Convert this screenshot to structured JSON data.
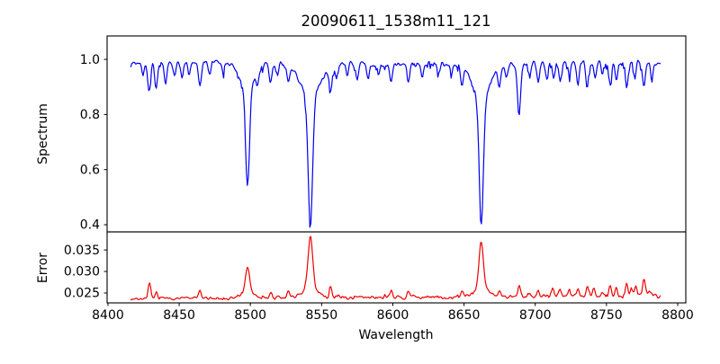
{
  "figure": {
    "background": "#ffffff",
    "spine_color": "#000000"
  },
  "chart_data": {
    "type": "line",
    "title": "20090611_1538m11_121",
    "xlabel": "Wavelength",
    "grid": false,
    "legend": "none",
    "seed": 7,
    "n_points": 560,
    "x_range_data": [
      8416,
      8788
    ],
    "xlim": [
      8399.4,
      8805.7
    ],
    "x_ticks": [
      {
        "value": 8400,
        "label": "8400"
      },
      {
        "value": 8450,
        "label": "8450"
      },
      {
        "value": 8500,
        "label": "8500"
      },
      {
        "value": 8550,
        "label": "8550"
      },
      {
        "value": 8600,
        "label": "8600"
      },
      {
        "value": 8650,
        "label": "8650"
      },
      {
        "value": 8700,
        "label": "8700"
      },
      {
        "value": 8750,
        "label": "8750"
      },
      {
        "value": 8800,
        "label": "8800"
      }
    ],
    "panels": [
      {
        "name": "spectrum",
        "ylabel": "Spectrum",
        "color": "#0000ee",
        "ylim": [
          0.374,
          1.085
        ],
        "y_ticks": [
          {
            "value": 1.0,
            "label": "1.0"
          },
          {
            "value": 0.8,
            "label": "0.8"
          },
          {
            "value": 0.6,
            "label": "0.6"
          },
          {
            "value": 0.4,
            "label": "0.4"
          }
        ],
        "continuum": 0.985,
        "undulation_amp": 0.004,
        "noise_amp": 0.013,
        "dip_prob": 0.13,
        "dip_amp": 0.024,
        "clamp_max": 1.032,
        "absorption_lines": [
          {
            "c": 8498.0,
            "d": 0.36,
            "s": 1.3,
            "dw": 0.095,
            "sw": 5.5
          },
          {
            "c": 8542.1,
            "d": 0.47,
            "s": 1.5,
            "dw": 0.125,
            "sw": 7.0
          },
          {
            "c": 8662.1,
            "d": 0.46,
            "s": 1.45,
            "dw": 0.12,
            "sw": 6.5
          },
          {
            "c": 8424.5,
            "d": 0.045,
            "s": 0.9
          },
          {
            "c": 8429.0,
            "d": 0.105,
            "s": 1.0
          },
          {
            "c": 8433.8,
            "d": 0.1,
            "s": 0.9
          },
          {
            "c": 8440.5,
            "d": 0.075,
            "s": 0.9
          },
          {
            "c": 8446.8,
            "d": 0.05,
            "s": 0.8
          },
          {
            "c": 8452.0,
            "d": 0.055,
            "s": 0.8
          },
          {
            "c": 8457.0,
            "d": 0.05,
            "s": 0.8
          },
          {
            "c": 8464.5,
            "d": 0.09,
            "s": 1.0
          },
          {
            "c": 8471.5,
            "d": 0.04,
            "s": 0.8
          },
          {
            "c": 8481.0,
            "d": 0.04,
            "s": 0.8
          },
          {
            "c": 8505.0,
            "d": 0.045,
            "s": 0.8
          },
          {
            "c": 8514.2,
            "d": 0.075,
            "s": 0.9
          },
          {
            "c": 8519.0,
            "d": 0.05,
            "s": 0.8
          },
          {
            "c": 8526.6,
            "d": 0.06,
            "s": 0.9
          },
          {
            "c": 8556.4,
            "d": 0.09,
            "s": 1.0
          },
          {
            "c": 8560.5,
            "d": 0.045,
            "s": 0.8
          },
          {
            "c": 8568.0,
            "d": 0.04,
            "s": 0.8
          },
          {
            "c": 8575.0,
            "d": 0.05,
            "s": 0.8
          },
          {
            "c": 8582.6,
            "d": 0.055,
            "s": 0.9
          },
          {
            "c": 8590.0,
            "d": 0.04,
            "s": 0.8
          },
          {
            "c": 8598.8,
            "d": 0.07,
            "s": 0.9
          },
          {
            "c": 8611.0,
            "d": 0.06,
            "s": 0.9
          },
          {
            "c": 8620.5,
            "d": 0.05,
            "s": 0.8
          },
          {
            "c": 8632.0,
            "d": 0.04,
            "s": 0.8
          },
          {
            "c": 8641.0,
            "d": 0.04,
            "s": 0.8
          },
          {
            "c": 8648.5,
            "d": 0.07,
            "s": 0.9
          },
          {
            "c": 8674.7,
            "d": 0.06,
            "s": 0.9
          },
          {
            "c": 8680.0,
            "d": 0.045,
            "s": 0.8
          },
          {
            "c": 8688.6,
            "d": 0.19,
            "s": 1.1
          },
          {
            "c": 8696.0,
            "d": 0.055,
            "s": 0.8
          },
          {
            "c": 8702.2,
            "d": 0.07,
            "s": 0.9
          },
          {
            "c": 8708.0,
            "d": 0.045,
            "s": 0.8
          },
          {
            "c": 8713.0,
            "d": 0.06,
            "s": 0.8
          },
          {
            "c": 8717.5,
            "d": 0.07,
            "s": 0.9
          },
          {
            "c": 8724.0,
            "d": 0.05,
            "s": 0.8
          },
          {
            "c": 8730.0,
            "d": 0.08,
            "s": 0.9
          },
          {
            "c": 8736.5,
            "d": 0.09,
            "s": 0.9
          },
          {
            "c": 8742.0,
            "d": 0.06,
            "s": 0.8
          },
          {
            "c": 8747.0,
            "d": 0.05,
            "s": 0.8
          },
          {
            "c": 8752.5,
            "d": 0.08,
            "s": 0.9
          },
          {
            "c": 8757.0,
            "d": 0.06,
            "s": 0.8
          },
          {
            "c": 8764.2,
            "d": 0.09,
            "s": 0.9
          },
          {
            "c": 8770.0,
            "d": 0.055,
            "s": 0.8
          },
          {
            "c": 8776.4,
            "d": 0.095,
            "s": 0.9
          },
          {
            "c": 8782.0,
            "d": 0.05,
            "s": 0.8
          }
        ]
      },
      {
        "name": "error",
        "ylabel": "Error",
        "color": "#ee0000",
        "ylim": [
          0.0227,
          0.0392
        ],
        "y_ticks": [
          {
            "value": 0.035,
            "label": "0.035"
          },
          {
            "value": 0.03,
            "label": "0.030"
          },
          {
            "value": 0.025,
            "label": "0.025"
          }
        ],
        "baseline_start": 0.0237,
        "baseline_end": 0.0243,
        "noise_amp": 0.00045,
        "noise_right_growth": 0.6,
        "dip_couple": 0.0004,
        "peaks": [
          {
            "c": 8498.0,
            "h": 0.0062,
            "s": 1.4,
            "hw": 0.0012,
            "sw": 4.0
          },
          {
            "c": 8542.1,
            "h": 0.0118,
            "s": 1.6,
            "hw": 0.0025,
            "sw": 5.0
          },
          {
            "c": 8662.1,
            "h": 0.0105,
            "s": 1.5,
            "hw": 0.0022,
            "sw": 5.0
          },
          {
            "c": 8429.0,
            "h": 0.0038,
            "s": 0.9
          },
          {
            "c": 8434.0,
            "h": 0.0015,
            "s": 0.8
          },
          {
            "c": 8464.5,
            "h": 0.0018,
            "s": 0.9
          },
          {
            "c": 8514.2,
            "h": 0.0012,
            "s": 0.8
          },
          {
            "c": 8526.6,
            "h": 0.0012,
            "s": 0.8
          },
          {
            "c": 8556.4,
            "h": 0.0022,
            "s": 0.9
          },
          {
            "c": 8598.8,
            "h": 0.0015,
            "s": 0.8
          },
          {
            "c": 8611.0,
            "h": 0.0012,
            "s": 0.8
          },
          {
            "c": 8648.5,
            "h": 0.0015,
            "s": 0.8
          },
          {
            "c": 8674.7,
            "h": 0.0012,
            "s": 0.8
          },
          {
            "c": 8688.6,
            "h": 0.0022,
            "s": 0.9
          },
          {
            "c": 8696.0,
            "h": 0.001,
            "s": 0.8
          },
          {
            "c": 8702.2,
            "h": 0.0015,
            "s": 0.8
          },
          {
            "c": 8712.0,
            "h": 0.0022,
            "s": 0.8
          },
          {
            "c": 8717.5,
            "h": 0.0015,
            "s": 0.8
          },
          {
            "c": 8724.0,
            "h": 0.0012,
            "s": 0.8
          },
          {
            "c": 8730.0,
            "h": 0.0018,
            "s": 0.8
          },
          {
            "c": 8736.5,
            "h": 0.0022,
            "s": 0.8
          },
          {
            "c": 8741.0,
            "h": 0.0015,
            "s": 0.8
          },
          {
            "c": 8747.0,
            "h": 0.0012,
            "s": 0.8
          },
          {
            "c": 8752.5,
            "h": 0.0025,
            "s": 0.8
          },
          {
            "c": 8757.0,
            "h": 0.002,
            "s": 0.8
          },
          {
            "c": 8764.2,
            "h": 0.0035,
            "s": 0.9
          },
          {
            "c": 8767.5,
            "h": 0.002,
            "s": 0.8
          },
          {
            "c": 8770.5,
            "h": 0.0028,
            "s": 0.8
          },
          {
            "c": 8776.4,
            "h": 0.0038,
            "s": 0.9
          },
          {
            "c": 8780.0,
            "h": 0.0015,
            "s": 0.8
          }
        ]
      }
    ]
  }
}
